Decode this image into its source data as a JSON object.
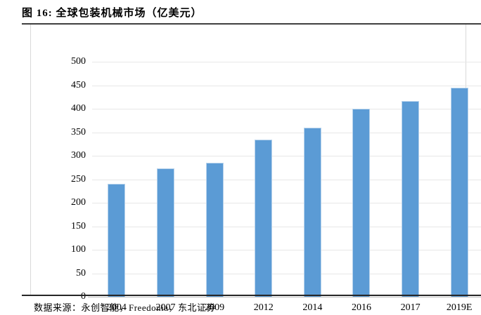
{
  "figure": {
    "title": "图  16:  全球包装机械市场（亿美元）",
    "source": "数据来源：永创智能，Freedonia，东北证券"
  },
  "colors": {
    "bar_fill": "#5B9BD5",
    "bar_border": "#B8D3EC",
    "gridline": "#E7E7E7",
    "axis_line": "#BFBFBF",
    "title_rule": "#3F3F3F",
    "footer_rule": "#262626",
    "panel_border": "#D9D9D9",
    "text": "#000000"
  },
  "chart_data": {
    "type": "bar",
    "title": "全球包装机械市场（亿美元）",
    "categories": [
      "2004",
      "2007",
      "2009",
      "2012",
      "2014",
      "2016",
      "2017",
      "2019E"
    ],
    "values": [
      240,
      273,
      285,
      335,
      360,
      400,
      417,
      445
    ],
    "xlabel": "",
    "ylabel": "",
    "ylim": [
      0,
      500
    ],
    "y_ticks": [
      0,
      50,
      100,
      150,
      200,
      250,
      300,
      350,
      400,
      450,
      500
    ],
    "grid": true,
    "legend_position": "none"
  }
}
